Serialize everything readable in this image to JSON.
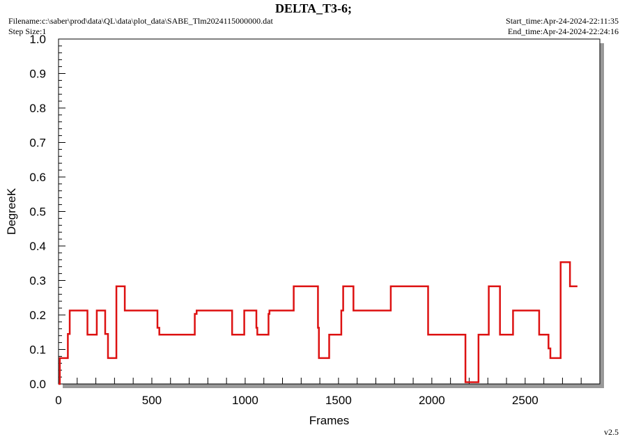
{
  "header": {
    "title": "DELTA_T3-6;",
    "filename": "Filename:c:\\saber\\prod\\data\\QL\\data\\plot_data\\SABE_Tlm2024115000000.dat",
    "step_size": "Step Size:1",
    "start_time": "Start_time:Apr-24-2024-22:11:35",
    "end_time": "End_time:Apr-24-2024-22:24:16",
    "version": "v2.5"
  },
  "colors": {
    "line": "#dd1111",
    "shadow": "#999999",
    "background": "#ffffff"
  },
  "chart_data": {
    "type": "line",
    "title": "DELTA_T3-6;",
    "xlabel": "Frames",
    "ylabel": "DegreeK",
    "xlim": [
      0,
      2900
    ],
    "ylim": [
      0,
      1.0
    ],
    "x_ticks": [
      0,
      500,
      1000,
      1500,
      2000,
      2500
    ],
    "x_tick_labels": [
      "0",
      "500",
      "1000",
      "1500",
      "2000",
      "2500"
    ],
    "y_ticks": [
      0,
      0.1,
      0.2,
      0.3,
      0.4,
      0.5,
      0.6,
      0.7,
      0.8,
      0.9,
      1.0
    ],
    "y_tick_labels": [
      "0.0",
      "0.1",
      "0.2",
      "0.3",
      "0.4",
      "0.5",
      "0.6",
      "0.7",
      "0.8",
      "0.9",
      "1.0"
    ],
    "grid": false,
    "legend": "none",
    "step": true,
    "series": [
      {
        "x": [
          0,
          7,
          50,
          60,
          155,
          205,
          250,
          265,
          310,
          355,
          530,
          540,
          730,
          740,
          930,
          995,
          1060,
          1065,
          1125,
          1130,
          1260,
          1390,
          1395,
          1450,
          1515,
          1525,
          1580,
          1590,
          1780,
          1980,
          1990,
          2180,
          2190,
          2240,
          2250,
          2305,
          2310,
          2365,
          2375,
          2435,
          2440,
          2575,
          2580,
          2625,
          2635,
          2680,
          2690,
          2730,
          2740,
          2780
        ],
        "y": [
          0.0,
          0.075,
          0.145,
          0.213,
          0.143,
          0.213,
          0.145,
          0.075,
          0.283,
          0.213,
          0.163,
          0.143,
          0.203,
          0.213,
          0.143,
          0.213,
          0.163,
          0.143,
          0.203,
          0.213,
          0.283,
          0.163,
          0.075,
          0.143,
          0.213,
          0.283,
          0.213,
          0.213,
          0.283,
          0.143,
          0.143,
          0.005,
          0.005,
          0.005,
          0.143,
          0.283,
          0.283,
          0.143,
          0.143,
          0.213,
          0.213,
          0.143,
          0.143,
          0.103,
          0.075,
          0.075,
          0.353,
          0.353,
          0.283,
          0.283
        ]
      }
    ]
  }
}
